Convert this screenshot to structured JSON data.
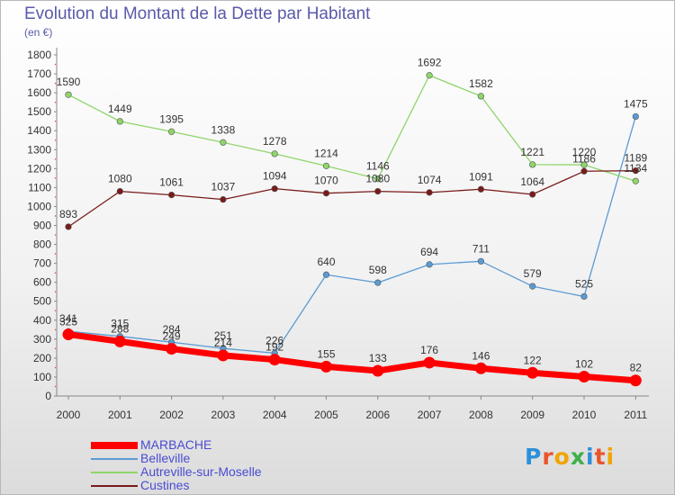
{
  "title": "Evolution du Montant de la Dette par Habitant",
  "subtitle": "(en €)",
  "logo": {
    "text": "Proxiti",
    "letter_colors": [
      "#2e8fd9",
      "#e8552a",
      "#f0a500",
      "#3cb04a",
      "#2e8fd9",
      "#e8552a",
      "#f0a500"
    ]
  },
  "chart_data": {
    "type": "line",
    "title": "Evolution du Montant de la Dette par Habitant",
    "subtitle": "(en €)",
    "x": [
      "2000",
      "2001",
      "2002",
      "2003",
      "2004",
      "2005",
      "2006",
      "2007",
      "2008",
      "2009",
      "2010",
      "2011"
    ],
    "ylim": [
      0,
      1800
    ],
    "yticks": [
      0,
      100,
      200,
      300,
      400,
      500,
      600,
      700,
      800,
      900,
      1000,
      1100,
      1200,
      1300,
      1400,
      1500,
      1600,
      1700,
      1800
    ],
    "grid": false,
    "legend_position": "bottom-left",
    "series": [
      {
        "name": "MARBACHE",
        "color": "#ff0000",
        "values": [
          325,
          288,
          249,
          214,
          192,
          155,
          133,
          176,
          146,
          122,
          102,
          82
        ],
        "labels": [
          "325",
          "288",
          "249",
          "214",
          "192",
          "155",
          "133",
          "176",
          "146",
          "122",
          "102",
          "82"
        ]
      },
      {
        "name": "Belleville",
        "color": "#5b9bd5",
        "values": [
          341,
          315,
          284,
          251,
          226,
          640,
          598,
          694,
          711,
          579,
          525,
          1475
        ],
        "labels": [
          "341",
          "315",
          "284",
          "251",
          "226",
          "640",
          "598",
          "694",
          "711",
          "579",
          "525",
          "1475"
        ]
      },
      {
        "name": "Autreville-sur-Moselle",
        "color": "#8ed66a",
        "values": [
          1590,
          1449,
          1395,
          1338,
          1278,
          1214,
          1146,
          1692,
          1582,
          1221,
          1220,
          1134
        ],
        "labels": [
          "1590",
          "1449",
          "1395",
          "1338",
          "1278",
          "1214",
          "1146",
          "1692",
          "1582",
          "1221",
          "1220",
          "1134"
        ]
      },
      {
        "name": "Custines",
        "color": "#7a1a1a",
        "values": [
          893,
          1080,
          1061,
          1037,
          1094,
          1070,
          1080,
          1074,
          1091,
          1064,
          1186,
          1189
        ],
        "labels": [
          "893",
          "1080",
          "1061",
          "1037",
          "1094",
          "1070",
          "1080",
          "1074",
          "1091",
          "1064",
          "1186",
          "1189"
        ]
      }
    ]
  }
}
